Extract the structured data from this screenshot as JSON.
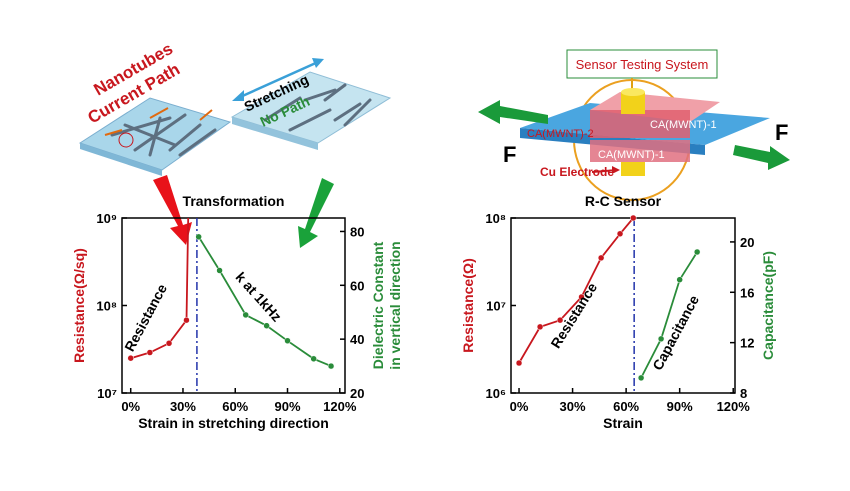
{
  "chart_data": [
    {
      "type": "line",
      "title": "Transformation",
      "xlabel": "Strain in stretching direction",
      "ylabel": "Resistance(Ω/sq)",
      "y2label": [
        "Dielectric Constant",
        "in vertical direction"
      ],
      "annotations": [
        "Resistance",
        "k at 1kHz"
      ],
      "xlim": [
        -5,
        123
      ],
      "xticks": [
        {
          "value": 0,
          "label": "0%"
        },
        {
          "value": 30,
          "label": "30%"
        },
        {
          "value": 60,
          "label": "60%"
        },
        {
          "value": 90,
          "label": "90%"
        },
        {
          "value": 120,
          "label": "120%"
        }
      ],
      "ylim": [
        10000000,
        1000000000
      ],
      "yscale": "log",
      "yticks": [
        {
          "value": 10000000,
          "label": "10⁷"
        },
        {
          "value": 100000000,
          "label": "10⁸"
        },
        {
          "value": 1000000000,
          "label": "10⁹"
        }
      ],
      "y2lim": [
        20,
        85
      ],
      "y2ticks": [
        20,
        40,
        60,
        80
      ],
      "vline": 38,
      "vline_color": "#2233aa",
      "series": [
        {
          "name": "Resistance",
          "color": "#c8171e",
          "x": [
            0,
            11,
            22,
            32,
            33
          ],
          "values": [
            25000000,
            29000000,
            37000000,
            68000000,
            1000000000
          ],
          "markers": [
            true,
            true,
            true,
            true,
            false
          ]
        },
        {
          "name": "k at 1kHz",
          "color": "#2a8c3a",
          "axis": "y2",
          "x": [
            39,
            51,
            66,
            78,
            90,
            105,
            115
          ],
          "values": [
            78,
            65.5,
            49,
            45,
            39.4,
            32.7,
            30
          ]
        }
      ]
    },
    {
      "type": "line",
      "title": "R-C Sensor",
      "xlabel": "Strain",
      "ylabel": "Resistance(Ω)",
      "y2label": [
        "Capacitance(pF)"
      ],
      "annotations": [
        "Resistance",
        "Capacitance"
      ],
      "xlim": [
        -4.5,
        121
      ],
      "xticks": [
        {
          "value": 0,
          "label": "0%"
        },
        {
          "value": 30,
          "label": "30%"
        },
        {
          "value": 60,
          "label": "60%"
        },
        {
          "value": 90,
          "label": "90%"
        },
        {
          "value": 120,
          "label": "120%"
        }
      ],
      "ylim": [
        1000000,
        100000000
      ],
      "yscale": "log",
      "yticks": [
        {
          "value": 1000000,
          "label": "10⁶"
        },
        {
          "value": 10000000,
          "label": "10⁷"
        },
        {
          "value": 100000000,
          "label": "10⁸"
        }
      ],
      "y2lim": [
        8,
        21.9
      ],
      "y2ticks": [
        8,
        12,
        16,
        20
      ],
      "vline": 64.5,
      "vline_color": "#2233aa",
      "series": [
        {
          "name": "Resistance",
          "color": "#c8171e",
          "x": [
            0,
            11.8,
            23,
            35,
            46,
            56.6,
            64
          ],
          "values": [
            2200000,
            5700000,
            6800000,
            12500000,
            35000000,
            66000000,
            100000000
          ]
        },
        {
          "name": "Capacitance",
          "color": "#2a8c3a",
          "axis": "y2",
          "x": [
            68.4,
            79.6,
            90,
            99.8
          ],
          "values": [
            9.2,
            12.3,
            17,
            19.2
          ]
        }
      ]
    }
  ],
  "diagrams": {
    "left": {
      "label1": "Nanotubes",
      "label2": "Current Path",
      "stretch": "Stretching",
      "nopath": "No Path"
    },
    "right": {
      "system": "Sensor Testing System",
      "force_left": "F",
      "force_right": "F",
      "layer2": "CA(MWNT)-2",
      "layer1_top": "CA(MWNT)-1",
      "layer1_bottom": "CA(MWNT)-1",
      "electrode": "Cu Electrode"
    }
  }
}
